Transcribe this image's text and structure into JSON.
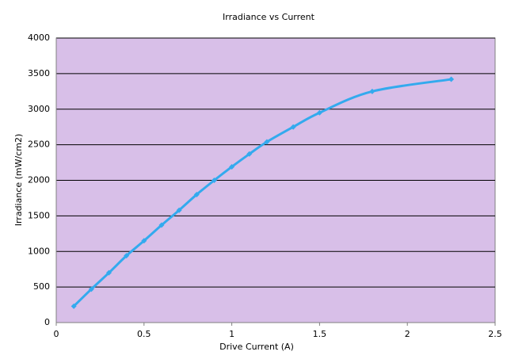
{
  "chart_data": {
    "type": "line",
    "title": "Irradiance vs Current",
    "x_label": "Drive Current (A)",
    "y_label": "Irradiance (mW/cm2)",
    "x": [
      0.1,
      0.2,
      0.3,
      0.4,
      0.5,
      0.6,
      0.7,
      0.8,
      0.9,
      1.0,
      1.1,
      1.2,
      1.35,
      1.5,
      1.8,
      2.25
    ],
    "series": [
      {
        "name": "Irradiance",
        "color": "#33aaee",
        "values": [
          230,
          470,
          700,
          940,
          1150,
          1370,
          1580,
          1800,
          2000,
          2190,
          2370,
          2540,
          2750,
          2950,
          3250,
          3420
        ]
      }
    ],
    "xlim": [
      0,
      2.5
    ],
    "xticks": [
      0,
      0.5,
      1,
      1.5,
      2,
      2.5
    ],
    "ylim": [
      0,
      4000
    ],
    "yticks": [
      0,
      500,
      1000,
      1500,
      2000,
      2500,
      3000,
      3500,
      4000
    ],
    "grid": true,
    "plot_background": "#d8bfe8"
  }
}
